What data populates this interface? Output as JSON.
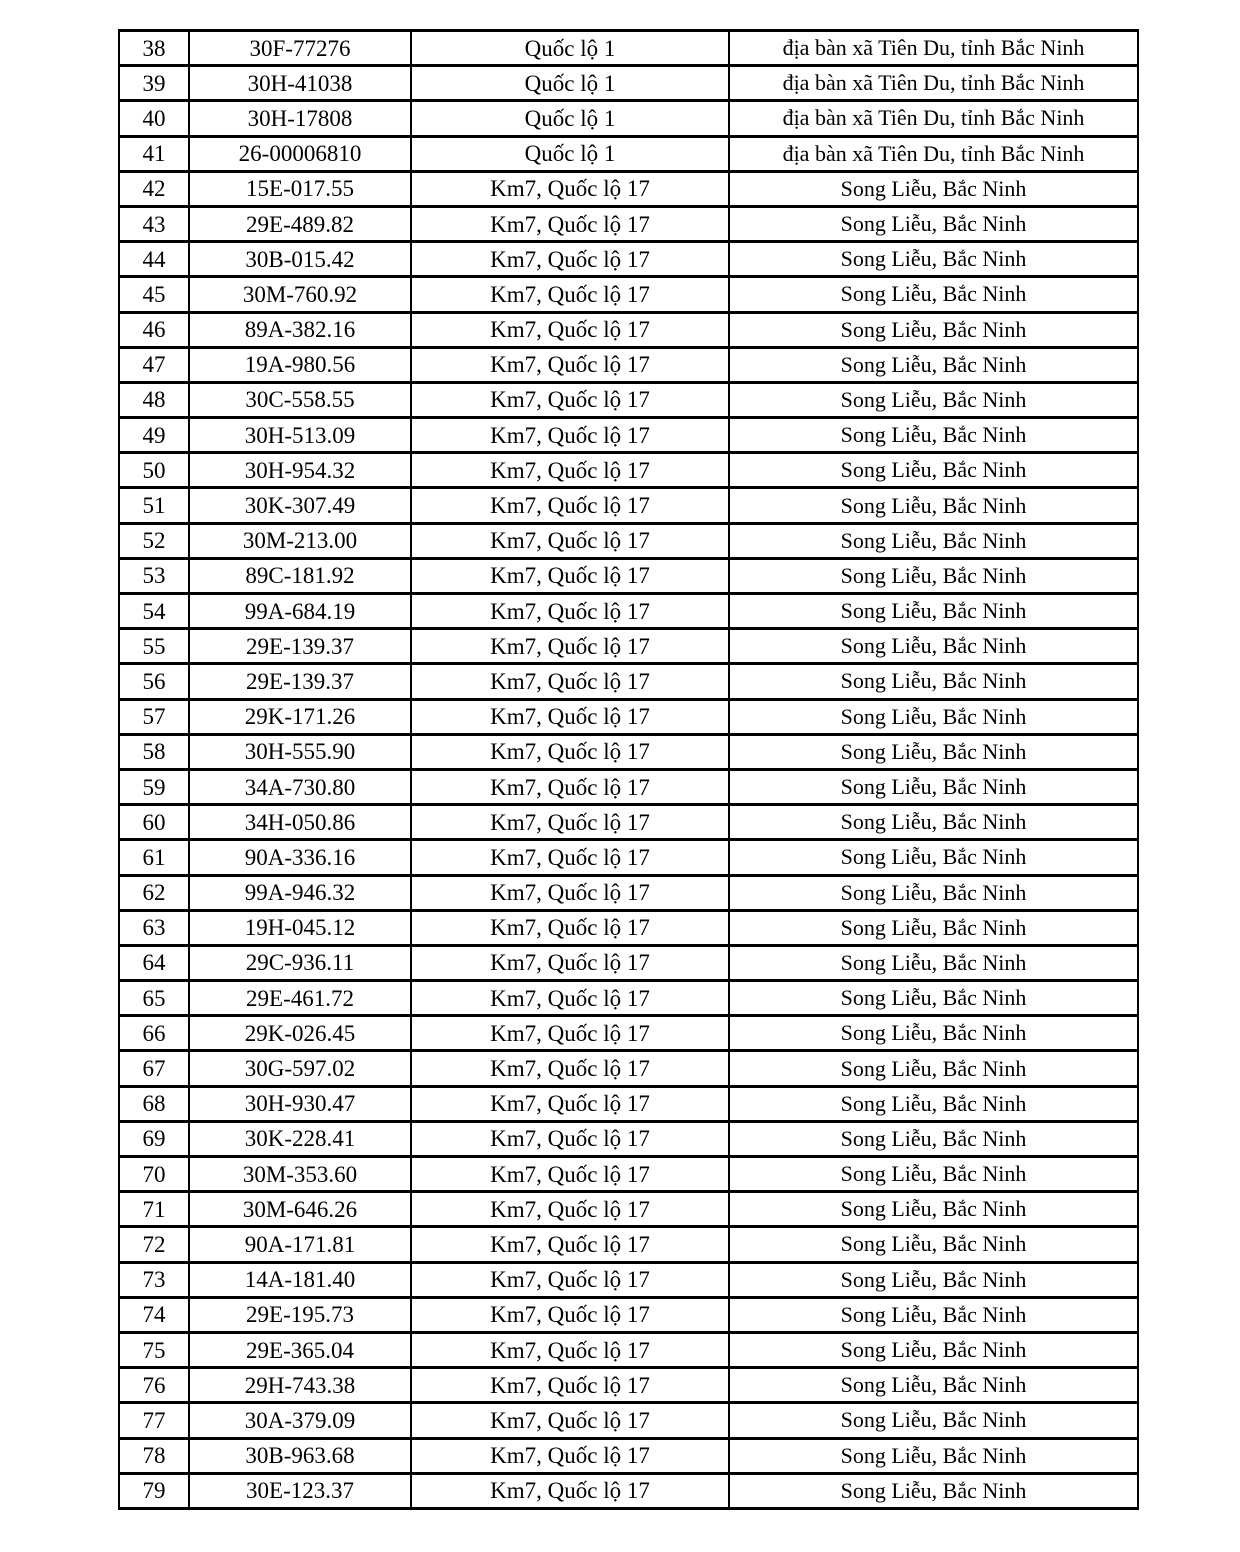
{
  "table": {
    "rows": [
      {
        "no": "38",
        "plate": "30F-77276",
        "location": "Quốc lộ 1",
        "area": "địa bàn xã Tiên Du, tỉnh Bắc Ninh"
      },
      {
        "no": "39",
        "plate": "30H-41038",
        "location": "Quốc lộ 1",
        "area": "địa bàn xã Tiên Du, tỉnh Bắc Ninh"
      },
      {
        "no": "40",
        "plate": "30H-17808",
        "location": "Quốc lộ 1",
        "area": "địa bàn xã Tiên Du, tỉnh Bắc Ninh"
      },
      {
        "no": "41",
        "plate": "26-00006810",
        "location": "Quốc lộ 1",
        "area": "địa bàn xã Tiên Du, tỉnh Bắc Ninh"
      },
      {
        "no": "42",
        "plate": "15E-017.55",
        "location": "Km7, Quốc lộ 17",
        "area": "Song Liễu, Bắc Ninh"
      },
      {
        "no": "43",
        "plate": "29E-489.82",
        "location": "Km7, Quốc lộ 17",
        "area": "Song Liễu, Bắc Ninh"
      },
      {
        "no": "44",
        "plate": "30B-015.42",
        "location": "Km7, Quốc lộ 17",
        "area": "Song Liễu, Bắc Ninh"
      },
      {
        "no": "45",
        "plate": "30M-760.92",
        "location": "Km7, Quốc lộ 17",
        "area": "Song Liễu, Bắc Ninh"
      },
      {
        "no": "46",
        "plate": "89A-382.16",
        "location": "Km7, Quốc lộ 17",
        "area": "Song Liễu, Bắc Ninh"
      },
      {
        "no": "47",
        "plate": "19A-980.56",
        "location": "Km7, Quốc lộ 17",
        "area": "Song Liễu, Bắc Ninh"
      },
      {
        "no": "48",
        "plate": "30C-558.55",
        "location": "Km7, Quốc lộ 17",
        "area": "Song Liễu, Bắc Ninh"
      },
      {
        "no": "49",
        "plate": "30H-513.09",
        "location": "Km7, Quốc lộ 17",
        "area": "Song Liễu, Bắc Ninh"
      },
      {
        "no": "50",
        "plate": "30H-954.32",
        "location": "Km7, Quốc lộ 17",
        "area": "Song Liễu, Bắc Ninh"
      },
      {
        "no": "51",
        "plate": "30K-307.49",
        "location": "Km7, Quốc lộ 17",
        "area": "Song Liễu, Bắc Ninh"
      },
      {
        "no": "52",
        "plate": "30M-213.00",
        "location": "Km7, Quốc lộ 17",
        "area": "Song Liễu, Bắc Ninh"
      },
      {
        "no": "53",
        "plate": "89C-181.92",
        "location": "Km7, Quốc lộ 17",
        "area": "Song Liễu, Bắc Ninh"
      },
      {
        "no": "54",
        "plate": "99A-684.19",
        "location": "Km7, Quốc lộ 17",
        "area": "Song Liễu, Bắc Ninh"
      },
      {
        "no": "55",
        "plate": "29E-139.37",
        "location": "Km7, Quốc lộ 17",
        "area": "Song Liễu, Bắc Ninh"
      },
      {
        "no": "56",
        "plate": "29E-139.37",
        "location": "Km7, Quốc lộ 17",
        "area": "Song Liễu, Bắc Ninh"
      },
      {
        "no": "57",
        "plate": "29K-171.26",
        "location": "Km7, Quốc lộ 17",
        "area": "Song Liễu, Bắc Ninh"
      },
      {
        "no": "58",
        "plate": "30H-555.90",
        "location": "Km7, Quốc lộ 17",
        "area": "Song Liễu, Bắc Ninh"
      },
      {
        "no": "59",
        "plate": "34A-730.80",
        "location": "Km7, Quốc lộ 17",
        "area": "Song Liễu, Bắc Ninh"
      },
      {
        "no": "60",
        "plate": "34H-050.86",
        "location": "Km7, Quốc lộ 17",
        "area": "Song Liễu, Bắc Ninh"
      },
      {
        "no": "61",
        "plate": "90A-336.16",
        "location": "Km7, Quốc lộ 17",
        "area": "Song Liễu, Bắc Ninh"
      },
      {
        "no": "62",
        "plate": "99A-946.32",
        "location": "Km7, Quốc lộ 17",
        "area": "Song Liễu, Bắc Ninh"
      },
      {
        "no": "63",
        "plate": "19H-045.12",
        "location": "Km7, Quốc lộ 17",
        "area": "Song Liễu, Bắc Ninh"
      },
      {
        "no": "64",
        "plate": "29C-936.11",
        "location": "Km7, Quốc lộ 17",
        "area": "Song Liễu, Bắc Ninh"
      },
      {
        "no": "65",
        "plate": "29E-461.72",
        "location": "Km7, Quốc lộ 17",
        "area": "Song Liễu, Bắc Ninh"
      },
      {
        "no": "66",
        "plate": "29K-026.45",
        "location": "Km7, Quốc lộ 17",
        "area": "Song Liễu, Bắc Ninh"
      },
      {
        "no": "67",
        "plate": "30G-597.02",
        "location": "Km7, Quốc lộ 17",
        "area": "Song Liễu, Bắc Ninh"
      },
      {
        "no": "68",
        "plate": "30H-930.47",
        "location": "Km7, Quốc lộ 17",
        "area": "Song Liễu, Bắc Ninh"
      },
      {
        "no": "69",
        "plate": "30K-228.41",
        "location": "Km7, Quốc lộ 17",
        "area": "Song Liễu, Bắc Ninh"
      },
      {
        "no": "70",
        "plate": "30M-353.60",
        "location": "Km7, Quốc lộ 17",
        "area": "Song Liễu, Bắc Ninh"
      },
      {
        "no": "71",
        "plate": "30M-646.26",
        "location": "Km7, Quốc lộ 17",
        "area": "Song Liễu, Bắc Ninh"
      },
      {
        "no": "72",
        "plate": "90A-171.81",
        "location": "Km7, Quốc lộ 17",
        "area": "Song Liễu, Bắc Ninh"
      },
      {
        "no": "73",
        "plate": "14A-181.40",
        "location": "Km7, Quốc lộ 17",
        "area": "Song Liễu, Bắc Ninh"
      },
      {
        "no": "74",
        "plate": "29E-195.73",
        "location": "Km7, Quốc lộ 17",
        "area": "Song Liễu, Bắc Ninh"
      },
      {
        "no": "75",
        "plate": "29E-365.04",
        "location": "Km7, Quốc lộ 17",
        "area": "Song Liễu, Bắc Ninh"
      },
      {
        "no": "76",
        "plate": "29H-743.38",
        "location": "Km7, Quốc lộ 17",
        "area": "Song Liễu, Bắc Ninh"
      },
      {
        "no": "77",
        "plate": "30A-379.09",
        "location": "Km7, Quốc lộ 17",
        "area": "Song Liễu, Bắc Ninh"
      },
      {
        "no": "78",
        "plate": "30B-963.68",
        "location": "Km7, Quốc lộ 17",
        "area": "Song Liễu, Bắc Ninh"
      },
      {
        "no": "79",
        "plate": "30E-123.37",
        "location": "Km7, Quốc lộ 17",
        "area": "Song Liễu, Bắc Ninh"
      }
    ]
  }
}
